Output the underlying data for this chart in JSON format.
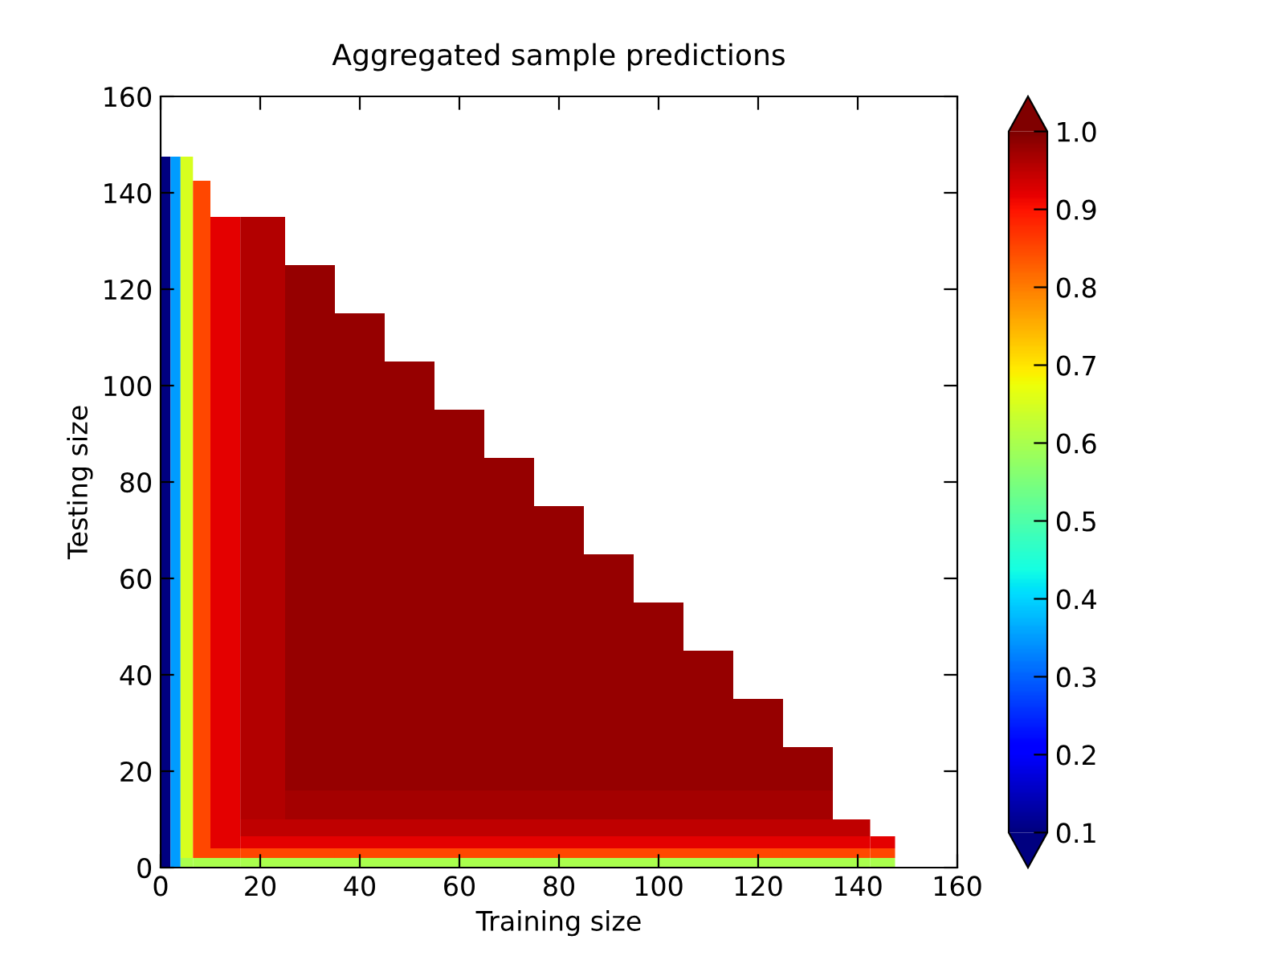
{
  "chart_data": {
    "type": "heatmap",
    "title": "Aggregated sample predictions",
    "xlabel": "Training size",
    "ylabel": "Testing size",
    "x": [
      1,
      3,
      5,
      8,
      12,
      20,
      30,
      40,
      50,
      60,
      70,
      80,
      90,
      100,
      110,
      120,
      130,
      140,
      145
    ],
    "y": [
      145,
      140,
      130,
      120,
      110,
      100,
      90,
      80,
      70,
      60,
      50,
      40,
      30,
      20,
      12,
      8,
      5,
      3,
      1
    ],
    "cells": [
      [
        0.1,
        0.35,
        0.65,
        null,
        null,
        null,
        null,
        null,
        null,
        null,
        null,
        null,
        null,
        null,
        null,
        null,
        null,
        null,
        null
      ],
      [
        0.1,
        0.35,
        0.65,
        0.85,
        null,
        null,
        null,
        null,
        null,
        null,
        null,
        null,
        null,
        null,
        null,
        null,
        null,
        null,
        null
      ],
      [
        0.1,
        0.35,
        0.65,
        0.85,
        0.92,
        0.96,
        null,
        null,
        null,
        null,
        null,
        null,
        null,
        null,
        null,
        null,
        null,
        null,
        null
      ],
      [
        0.1,
        0.35,
        0.65,
        0.85,
        0.92,
        0.96,
        0.98,
        null,
        null,
        null,
        null,
        null,
        null,
        null,
        null,
        null,
        null,
        null,
        null
      ],
      [
        0.1,
        0.35,
        0.65,
        0.85,
        0.92,
        0.96,
        0.98,
        0.98,
        null,
        null,
        null,
        null,
        null,
        null,
        null,
        null,
        null,
        null,
        null
      ],
      [
        0.1,
        0.35,
        0.65,
        0.85,
        0.92,
        0.96,
        0.98,
        0.98,
        0.98,
        null,
        null,
        null,
        null,
        null,
        null,
        null,
        null,
        null,
        null
      ],
      [
        0.1,
        0.35,
        0.65,
        0.85,
        0.92,
        0.96,
        0.98,
        0.98,
        0.98,
        0.98,
        null,
        null,
        null,
        null,
        null,
        null,
        null,
        null,
        null
      ],
      [
        0.1,
        0.35,
        0.65,
        0.85,
        0.92,
        0.96,
        0.98,
        0.98,
        0.98,
        0.98,
        0.98,
        null,
        null,
        null,
        null,
        null,
        null,
        null,
        null
      ],
      [
        0.1,
        0.35,
        0.65,
        0.85,
        0.92,
        0.96,
        0.98,
        0.98,
        0.98,
        0.98,
        0.98,
        0.98,
        null,
        null,
        null,
        null,
        null,
        null,
        null
      ],
      [
        0.1,
        0.35,
        0.65,
        0.85,
        0.92,
        0.96,
        0.98,
        0.98,
        0.98,
        0.98,
        0.98,
        0.98,
        0.98,
        null,
        null,
        null,
        null,
        null,
        null
      ],
      [
        0.1,
        0.35,
        0.65,
        0.85,
        0.92,
        0.96,
        0.98,
        0.98,
        0.98,
        0.98,
        0.98,
        0.98,
        0.98,
        0.98,
        null,
        null,
        null,
        null,
        null
      ],
      [
        0.1,
        0.35,
        0.65,
        0.85,
        0.92,
        0.96,
        0.98,
        0.98,
        0.98,
        0.98,
        0.98,
        0.98,
        0.98,
        0.98,
        0.98,
        null,
        null,
        null,
        null
      ],
      [
        0.1,
        0.35,
        0.65,
        0.85,
        0.92,
        0.96,
        0.98,
        0.98,
        0.98,
        0.98,
        0.98,
        0.98,
        0.98,
        0.98,
        0.98,
        0.98,
        null,
        null,
        null
      ],
      [
        0.1,
        0.35,
        0.65,
        0.85,
        0.92,
        0.96,
        0.98,
        0.98,
        0.98,
        0.98,
        0.98,
        0.98,
        0.98,
        0.98,
        0.98,
        0.98,
        0.98,
        null,
        null
      ],
      [
        0.1,
        0.35,
        0.65,
        0.85,
        0.92,
        0.96,
        0.97,
        0.97,
        0.97,
        0.97,
        0.97,
        0.97,
        0.97,
        0.97,
        0.97,
        0.97,
        0.97,
        null,
        null
      ],
      [
        0.1,
        0.35,
        0.65,
        0.85,
        0.92,
        0.95,
        0.95,
        0.95,
        0.95,
        0.95,
        0.95,
        0.95,
        0.95,
        0.95,
        0.95,
        0.95,
        0.95,
        0.95,
        null
      ],
      [
        0.1,
        0.35,
        0.65,
        0.85,
        0.92,
        0.92,
        0.92,
        0.92,
        0.92,
        0.92,
        0.92,
        0.92,
        0.92,
        0.92,
        0.92,
        0.92,
        0.92,
        0.92,
        0.92
      ],
      [
        0.1,
        0.35,
        0.65,
        0.85,
        0.85,
        0.85,
        0.85,
        0.85,
        0.85,
        0.85,
        0.85,
        0.85,
        0.85,
        0.85,
        0.85,
        0.85,
        0.85,
        0.85,
        0.85
      ],
      [
        0.1,
        0.35,
        0.6,
        0.6,
        0.6,
        0.6,
        0.6,
        0.6,
        0.6,
        0.6,
        0.6,
        0.6,
        0.6,
        0.6,
        0.6,
        0.6,
        0.6,
        0.6,
        0.6
      ]
    ],
    "xlim": [
      0,
      160
    ],
    "ylim": [
      0,
      160
    ],
    "xticks": [
      0,
      20,
      40,
      60,
      80,
      100,
      120,
      140,
      160
    ],
    "yticks": [
      0,
      20,
      40,
      60,
      80,
      100,
      120,
      140,
      160
    ],
    "clim": [
      0.1,
      1.0
    ],
    "cticks": [
      0.1,
      0.2,
      0.3,
      0.4,
      0.5,
      0.6,
      0.7,
      0.8,
      0.9,
      {
        "value": 1,
        "label": "1.0"
      }
    ]
  }
}
